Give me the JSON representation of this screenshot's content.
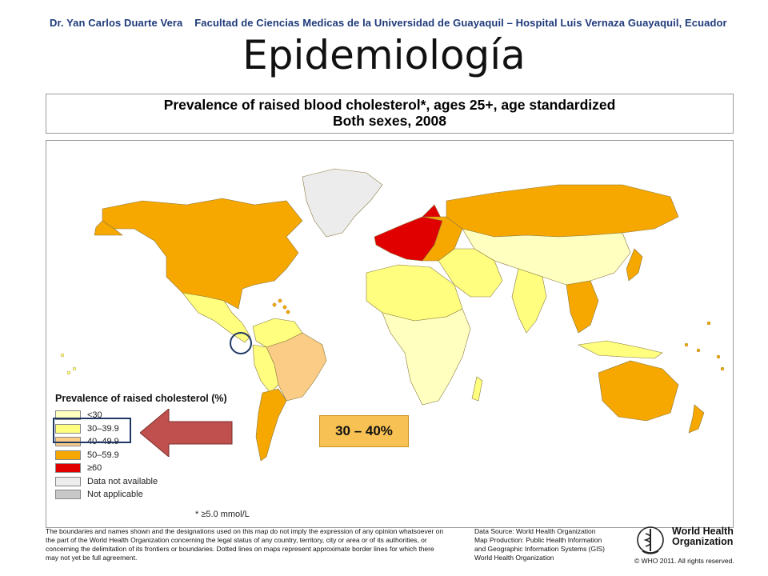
{
  "header": {
    "author": "Dr. Yan Carlos Duarte Vera",
    "affiliation": "Facultad de Ciencias Medicas de la Universidad de Guayaquil – Hospital Luis Vernaza Guayaquil, Ecuador"
  },
  "slide_title": "Epidemiología",
  "map_title": {
    "line1": "Prevalence of raised blood cholesterol*, ages 25+, age standardized",
    "line2": "Both sexes, 2008"
  },
  "legend": {
    "title": "Prevalence of raised cholesterol (%)",
    "items": [
      {
        "label": "<30",
        "color": "#ffffc0"
      },
      {
        "label": "30–39.9",
        "color": "#fffe7e"
      },
      {
        "label": "40–49.9",
        "color": "#fbcc85"
      },
      {
        "label": "50–59.9",
        "color": "#f7a800"
      },
      {
        "label": "≥60",
        "color": "#e00000"
      },
      {
        "label": "Data not available",
        "color": "#ececec"
      },
      {
        "label": "Not applicable",
        "color": "#c8c8c8"
      }
    ]
  },
  "footnote": "* ≥5.0 mmol/L",
  "callout": "30 – 40%",
  "disclaimer": "The boundaries and names shown and the designations used on this map do not imply the expression of any opinion whatsoever on the part of the World Health Organization concerning the legal status of any country, territory, city or area or of its authorities, or concerning the delimitation of its frontiers or boundaries. Dotted lines on maps represent approximate border lines for which there may not yet be full agreement.",
  "credits": {
    "line1": "Data Source: World Health Organization",
    "line2": "Map Production: Public Health Information",
    "line3": "and Geographic Information Systems (GIS)",
    "line4": "World Health Organization"
  },
  "who": {
    "name_line1": "World Health",
    "name_line2": "Organization",
    "copyright": "© WHO 2011. All rights reserved."
  },
  "colors": {
    "header_text": "#1f3a7a",
    "arrow_fill": "#c0504d",
    "highlight_border": "#1f3864",
    "callout_fill": "#f7c154",
    "circle_marker": "#1f3864"
  }
}
